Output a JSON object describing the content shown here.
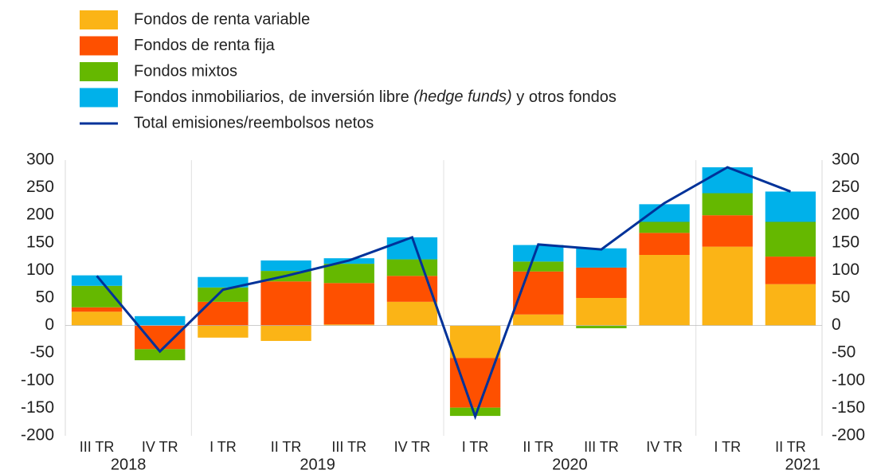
{
  "chart_data": {
    "type": "bar",
    "categories": [
      "III TR",
      "IV TR",
      "I TR",
      "II TR",
      "III TR",
      "IV TR",
      "I TR",
      "II TR",
      "III TR",
      "IV TR",
      "I TR",
      "II TR"
    ],
    "years": [
      {
        "label": "2018",
        "start": 0,
        "end": 1
      },
      {
        "label": "2019",
        "start": 2,
        "end": 5
      },
      {
        "label": "2020",
        "start": 6,
        "end": 9
      },
      {
        "label": "2021",
        "start": 10,
        "end": 11
      }
    ],
    "series": [
      {
        "name": "Fondos de renta variable",
        "type": "bar",
        "color": "#fbb416",
        "values": [
          25,
          0,
          -22,
          -28,
          2,
          43,
          -59,
          20,
          50,
          128,
          143,
          75
        ]
      },
      {
        "name": "Fondos de renta fija",
        "type": "bar",
        "color": "#fe5000",
        "values": [
          8,
          -43,
          43,
          80,
          75,
          47,
          -90,
          78,
          55,
          40,
          57,
          50
        ]
      },
      {
        "name": "Fondos mixtos",
        "type": "bar",
        "color": "#65b800",
        "values": [
          39,
          -20,
          26,
          19,
          35,
          30,
          -15,
          18,
          -5,
          20,
          40,
          63
        ]
      },
      {
        "name": "Fondos inmobiliarios, de inversión libre (hedge funds) y otros fondos",
        "type": "bar",
        "color": "#00b1ea",
        "values": [
          19,
          17,
          19,
          19,
          10,
          40,
          0,
          30,
          35,
          32,
          47,
          55
        ]
      },
      {
        "name": "Total emisiones/reembolsos netos",
        "type": "line",
        "color": "#003299",
        "values": [
          90,
          -47,
          65,
          90,
          118,
          160,
          -165,
          147,
          138,
          222,
          287,
          243
        ]
      }
    ],
    "ylim": [
      -200,
      300
    ],
    "yticks": [
      -200,
      -150,
      -100,
      -50,
      0,
      50,
      100,
      150,
      200,
      250,
      300
    ],
    "y2lim": [
      -200,
      300
    ],
    "y2ticks": [
      -200,
      -150,
      -100,
      -50,
      0,
      50,
      100,
      150,
      200,
      250,
      300
    ]
  }
}
